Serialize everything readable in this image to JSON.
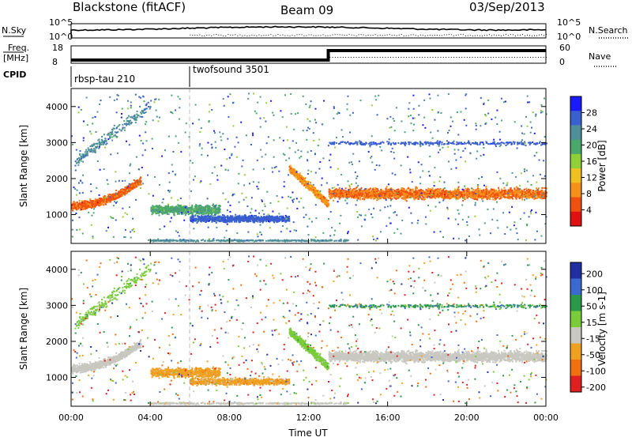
{
  "header": {
    "station": "Blackstone (fitACF)",
    "beam": "Beam 09",
    "date": "03/Sep/2013"
  },
  "noise_panel": {
    "left_label": "N.Sky",
    "right_label": "N.Search",
    "left_ticks": [
      "10^5",
      "10^0"
    ],
    "right_ticks": [
      "10^5",
      "10^0"
    ]
  },
  "freq_panel": {
    "left_label_1": "Freq.",
    "left_label_2": "[MHz]",
    "right_label": "Nave",
    "left_ticks": [
      "18",
      "8"
    ],
    "right_ticks": [
      "60",
      "0"
    ]
  },
  "cpid": {
    "label": "CPID",
    "modes": [
      "rbsp-tau 210",
      "twofsound 3501"
    ]
  },
  "chart_data": [
    {
      "type": "heatmap",
      "title": "Power",
      "ylabel": "Slant Range [km]",
      "xlabel": "Time UT",
      "x_ticks": [
        "00:00",
        "04:00",
        "08:00",
        "12:00",
        "16:00",
        "20:00",
        "00:00"
      ],
      "y_ticks": [
        "1000",
        "2000",
        "3000",
        "4000"
      ],
      "ylim": [
        200,
        4500
      ],
      "colorbar": {
        "label": "Power [dB]",
        "ticks": [
          "4",
          "8",
          "12",
          "16",
          "20",
          "24",
          "28"
        ],
        "colors": [
          "#1a1aff",
          "#3a5fcf",
          "#4f8f9a",
          "#4aa86a",
          "#8fcf3a",
          "#f0c020",
          "#f5901a",
          "#f05010",
          "#e01010"
        ]
      }
    },
    {
      "type": "heatmap",
      "title": "Velocity",
      "ylabel": "Slant Range [km]",
      "xlabel": "Time UT",
      "x_ticks": [
        "00:00",
        "04:00",
        "08:00",
        "12:00",
        "16:00",
        "20:00",
        "00:00"
      ],
      "y_ticks": [
        "1000",
        "2000",
        "3000",
        "4000"
      ],
      "ylim": [
        200,
        4500
      ],
      "colorbar": {
        "label": "Velocity [m s-1]",
        "ticks": [
          "200",
          "100",
          "50",
          "15",
          "-15",
          "-50",
          "-100",
          "-200"
        ],
        "colors": [
          "#2030a0",
          "#3a6ad0",
          "#2a9a4a",
          "#7acc3a",
          "#c8c8c0",
          "#f0a020",
          "#f07010",
          "#e02020"
        ]
      }
    }
  ],
  "xaxis": {
    "title": "Time UT"
  }
}
